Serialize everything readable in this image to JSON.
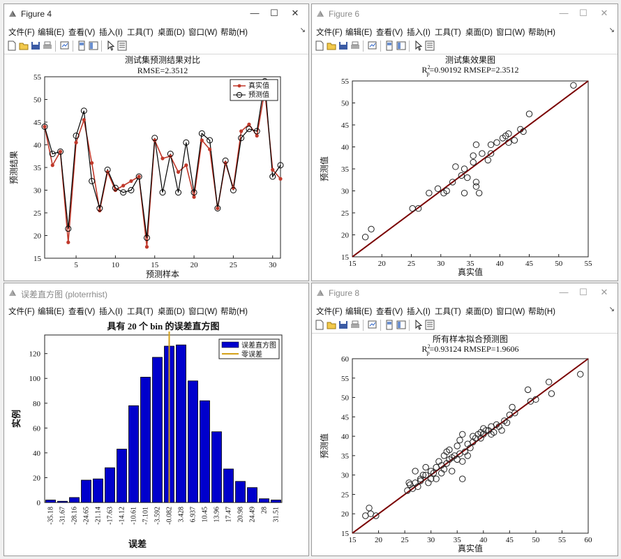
{
  "menu": [
    "文件(F)",
    "编辑(E)",
    "查看(V)",
    "插入(I)",
    "工具(T)",
    "桌面(D)",
    "窗口(W)",
    "帮助(H)"
  ],
  "window_buttons": {
    "minimize": "—",
    "maximize": "☐",
    "close": "✕"
  },
  "figure4": {
    "window_title": "Figure 4",
    "chart_title": "测试集预测结果对比",
    "chart_subtitle": "RMSE=2.3512",
    "xlabel": "预测样本",
    "ylabel": "预测结果",
    "legend": [
      "真实值",
      "预测值"
    ],
    "xticks": [
      "5",
      "10",
      "15",
      "20",
      "25",
      "30"
    ],
    "yticks": [
      "15",
      "20",
      "25",
      "30",
      "35",
      "40",
      "45",
      "50",
      "55"
    ]
  },
  "figure6": {
    "window_title": "Figure 6",
    "chart_title": "测试集效果图",
    "subtitle_r2": "R",
    "subtitle_sup": "2",
    "subtitle_sub": "p",
    "subtitle_rest": "=0.90192  RMSEP=2.3512",
    "xlabel": "真实值",
    "ylabel": "预测值",
    "xticks": [
      "15",
      "20",
      "25",
      "30",
      "35",
      "40",
      "45",
      "50",
      "55"
    ],
    "yticks": [
      "15",
      "20",
      "25",
      "30",
      "35",
      "40",
      "45",
      "50",
      "55"
    ]
  },
  "hist": {
    "window_title": "误差直方图 (ploterrhist)",
    "chart_title": "具有 20 个 bin 的误差直方图",
    "xlabel": "误差",
    "ylabel": "实例",
    "legend": [
      "误差直方图",
      "零误差"
    ],
    "bin_labels": [
      "-35.18",
      "-31.67",
      "-28.16",
      "-24.65",
      "-21.14",
      "-17.63",
      "-14.12",
      "-10.61",
      "-7.101",
      "-3.592",
      "-0.082",
      "3.428",
      "6.937",
      "10.45",
      "13.96",
      "17.47",
      "20.98",
      "24.49",
      "28",
      "31.51"
    ],
    "yticks": [
      "0",
      "20",
      "40",
      "60",
      "80",
      "100",
      "120"
    ]
  },
  "figure8": {
    "window_title": "Figure 8",
    "chart_title": "所有样本拟合预测图",
    "subtitle_r2": "R",
    "subtitle_sup": "2",
    "subtitle_sub": "p",
    "subtitle_rest": "=0.93124  RMSEP=1.9606",
    "xlabel": "真实值",
    "ylabel": "预测值",
    "xticks": [
      "15",
      "20",
      "25",
      "30",
      "35",
      "40",
      "45",
      "50",
      "55",
      "60"
    ],
    "yticks": [
      "15",
      "20",
      "25",
      "30",
      "35",
      "40",
      "45",
      "50",
      "55",
      "60"
    ]
  },
  "chart_data": [
    {
      "type": "line",
      "title": "测试集预测结果对比",
      "subtitle": "RMSE=2.3512",
      "xlabel": "预测样本",
      "ylabel": "预测结果",
      "xlim": [
        1,
        31
      ],
      "ylim": [
        15,
        55
      ],
      "legend_position": "top-right",
      "x": [
        1,
        2,
        3,
        4,
        5,
        6,
        7,
        8,
        9,
        10,
        11,
        12,
        13,
        14,
        15,
        16,
        17,
        18,
        19,
        20,
        21,
        22,
        23,
        24,
        25,
        26,
        27,
        28,
        29,
        30,
        31
      ],
      "series": [
        {
          "name": "真实值",
          "color": "#c0392b",
          "values": [
            44,
            35.5,
            38.5,
            18.5,
            40.5,
            45.5,
            36,
            25.5,
            34,
            30,
            31,
            32,
            33,
            17.5,
            41,
            37,
            37.5,
            34,
            35.5,
            28.5,
            41,
            39,
            26,
            36,
            30.5,
            43,
            44.5,
            42,
            52,
            34.5,
            32.5
          ]
        },
        {
          "name": "预测值",
          "color": "#000000",
          "values": [
            44,
            38,
            38.5,
            21.5,
            42,
            47.5,
            32,
            26,
            34.5,
            30.5,
            29.5,
            30,
            33,
            19.5,
            41.5,
            29.5,
            38,
            29.5,
            40.5,
            29.5,
            42.5,
            41,
            26,
            36.5,
            30,
            41.5,
            43.5,
            43,
            54,
            33,
            35.5
          ]
        }
      ]
    },
    {
      "type": "scatter",
      "title": "测试集效果图",
      "subtitle": "R²p=0.90192  RMSEP=2.3512",
      "xlabel": "真实值",
      "ylabel": "预测值",
      "xlim": [
        15,
        55
      ],
      "ylim": [
        15,
        55
      ],
      "fit_line_color": "#7a0000",
      "points": [
        [
          17.2,
          19.5
        ],
        [
          18.2,
          21.3
        ],
        [
          25.2,
          26
        ],
        [
          26.2,
          26
        ],
        [
          28,
          29.5
        ],
        [
          29.5,
          30.5
        ],
        [
          30.5,
          29.5
        ],
        [
          31,
          30
        ],
        [
          32,
          32
        ],
        [
          32.5,
          35.5
        ],
        [
          33.5,
          33.5
        ],
        [
          34,
          29.5
        ],
        [
          34,
          35
        ],
        [
          34.5,
          33
        ],
        [
          35.5,
          36.5
        ],
        [
          35.5,
          38
        ],
        [
          36,
          31
        ],
        [
          36,
          40.5
        ],
        [
          36,
          32
        ],
        [
          36.5,
          29.5
        ],
        [
          37,
          38.5
        ],
        [
          38,
          37
        ],
        [
          38.5,
          38.5
        ],
        [
          38.5,
          40.5
        ],
        [
          39.5,
          41
        ],
        [
          40.5,
          42
        ],
        [
          41,
          42.5
        ],
        [
          41.5,
          43
        ],
        [
          41.5,
          41
        ],
        [
          42.5,
          41.5
        ],
        [
          43.5,
          44
        ],
        [
          44,
          43.5
        ],
        [
          45,
          47.5
        ],
        [
          52.5,
          54
        ]
      ]
    },
    {
      "type": "bar",
      "title": "具有 20 个 bin 的误差直方图",
      "xlabel": "误差",
      "ylabel": "实例",
      "ylim": [
        0,
        135
      ],
      "legend_position": "top-right",
      "categories": [
        "-35.18",
        "-31.67",
        "-28.16",
        "-24.65",
        "-21.14",
        "-17.63",
        "-14.12",
        "-10.61",
        "-7.101",
        "-3.592",
        "-0.082",
        "3.428",
        "6.937",
        "10.45",
        "13.96",
        "17.47",
        "20.98",
        "24.49",
        "28",
        "31.51"
      ],
      "series": [
        {
          "name": "误差直方图",
          "color": "#0000cc",
          "values": [
            2,
            1,
            4,
            18,
            19,
            28,
            43,
            78,
            101,
            117,
            126,
            127,
            98,
            82,
            57,
            27,
            17,
            12,
            3,
            2
          ]
        }
      ],
      "zero_error_line": {
        "name": "零误差",
        "x": "-0.082",
        "color": "#d4a017"
      }
    },
    {
      "type": "scatter",
      "title": "所有样本拟合预测图",
      "subtitle": "R²p=0.93124  RMSEP=1.9606",
      "xlabel": "真实值",
      "ylabel": "预测值",
      "xlim": [
        15,
        60
      ],
      "ylim": [
        15,
        60
      ],
      "fit_line_color": "#7a0000",
      "points": [
        [
          17.5,
          19.5
        ],
        [
          18.2,
          21.5
        ],
        [
          18.5,
          20
        ],
        [
          19.5,
          19.5
        ],
        [
          25.5,
          26
        ],
        [
          25.8,
          28
        ],
        [
          26,
          27.5
        ],
        [
          26.5,
          26.5
        ],
        [
          27,
          28
        ],
        [
          27,
          31
        ],
        [
          27.5,
          27
        ],
        [
          28,
          29
        ],
        [
          28,
          28.5
        ],
        [
          28.5,
          30
        ],
        [
          29,
          30
        ],
        [
          29,
          32
        ],
        [
          29.5,
          28
        ],
        [
          30,
          31
        ],
        [
          30,
          29
        ],
        [
          30.5,
          30.5
        ],
        [
          31,
          32
        ],
        [
          31,
          29
        ],
        [
          31.5,
          33.5
        ],
        [
          32,
          30.5
        ],
        [
          32,
          32.5
        ],
        [
          32.5,
          31.5
        ],
        [
          32.5,
          35
        ],
        [
          33,
          33
        ],
        [
          33,
          36
        ],
        [
          33.5,
          34
        ],
        [
          33.5,
          36.5
        ],
        [
          34,
          31
        ],
        [
          34,
          34.5
        ],
        [
          34.5,
          35
        ],
        [
          35,
          37.5
        ],
        [
          35,
          34
        ],
        [
          35.5,
          35.5
        ],
        [
          35.5,
          39
        ],
        [
          36,
          29
        ],
        [
          36,
          40.5
        ],
        [
          36,
          33.5
        ],
        [
          36.5,
          36
        ],
        [
          37,
          38
        ],
        [
          37,
          35
        ],
        [
          37.5,
          37
        ],
        [
          38,
          38.5
        ],
        [
          38,
          40
        ],
        [
          38.5,
          39.5
        ],
        [
          39,
          40.5
        ],
        [
          39.5,
          41
        ],
        [
          39.5,
          39.5
        ],
        [
          40,
          42
        ],
        [
          40,
          40.5
        ],
        [
          40.5,
          41.5
        ],
        [
          41,
          41.5
        ],
        [
          41.5,
          42.5
        ],
        [
          41.5,
          40.5
        ],
        [
          42,
          41
        ],
        [
          42.5,
          43
        ],
        [
          43,
          42.5
        ],
        [
          43.5,
          41.5
        ],
        [
          44,
          44
        ],
        [
          44.5,
          43.5
        ],
        [
          45,
          45.5
        ],
        [
          45.5,
          47.5
        ],
        [
          46,
          46
        ],
        [
          48.5,
          52
        ],
        [
          49,
          49
        ],
        [
          50,
          49.5
        ],
        [
          52.5,
          54
        ],
        [
          53,
          51
        ],
        [
          58.5,
          56
        ]
      ]
    }
  ]
}
